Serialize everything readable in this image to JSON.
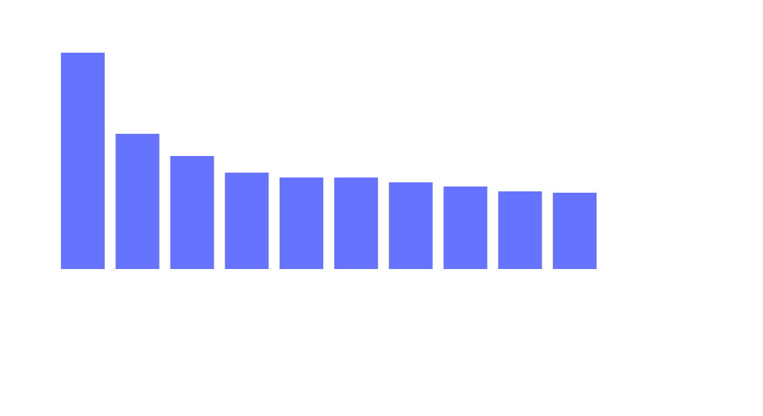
{
  "chart_data": {
    "type": "bar",
    "categories": [
      null,
      null,
      null,
      null,
      null,
      null,
      null,
      null,
      null,
      null
    ],
    "values": [
      312,
      195,
      163,
      139,
      132,
      132,
      125,
      119,
      112,
      110
    ],
    "color": "#6673ff",
    "ylim": [
      0,
      350
    ]
  }
}
